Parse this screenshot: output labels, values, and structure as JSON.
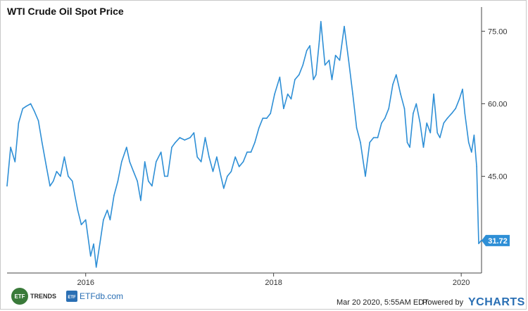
{
  "chart_data": {
    "type": "line",
    "title": "WTI Crude Oil Spot Price",
    "series": [
      {
        "color": "#2e8fd6",
        "points": [
          [
            "2015-03-01",
            43
          ],
          [
            "2015-03-15",
            51
          ],
          [
            "2015-04-01",
            48
          ],
          [
            "2015-04-15",
            56
          ],
          [
            "2015-05-01",
            59
          ],
          [
            "2015-05-15",
            59.5
          ],
          [
            "2015-06-01",
            60
          ],
          [
            "2015-06-15",
            58.5
          ],
          [
            "2015-07-01",
            56.5
          ],
          [
            "2015-07-15",
            52
          ],
          [
            "2015-08-01",
            47
          ],
          [
            "2015-08-15",
            43
          ],
          [
            "2015-08-28",
            44
          ],
          [
            "2015-09-10",
            46
          ],
          [
            "2015-09-25",
            45
          ],
          [
            "2015-10-10",
            49
          ],
          [
            "2015-10-25",
            45
          ],
          [
            "2015-11-10",
            44
          ],
          [
            "2015-11-20",
            41
          ],
          [
            "2015-12-01",
            38
          ],
          [
            "2015-12-15",
            35
          ],
          [
            "2016-01-01",
            36
          ],
          [
            "2016-01-20",
            28.5
          ],
          [
            "2016-02-01",
            31
          ],
          [
            "2016-02-11",
            26.2
          ],
          [
            "2016-02-25",
            31
          ],
          [
            "2016-03-10",
            36
          ],
          [
            "2016-03-25",
            38
          ],
          [
            "2016-04-05",
            36
          ],
          [
            "2016-04-20",
            41
          ],
          [
            "2016-05-05",
            44
          ],
          [
            "2016-05-20",
            48
          ],
          [
            "2016-06-08",
            51
          ],
          [
            "2016-06-20",
            48
          ],
          [
            "2016-07-05",
            46
          ],
          [
            "2016-07-20",
            44
          ],
          [
            "2016-08-02",
            40
          ],
          [
            "2016-08-18",
            48
          ],
          [
            "2016-09-01",
            44
          ],
          [
            "2016-09-15",
            43
          ],
          [
            "2016-10-01",
            48
          ],
          [
            "2016-10-20",
            50
          ],
          [
            "2016-11-03",
            45
          ],
          [
            "2016-11-15",
            45
          ],
          [
            "2016-12-01",
            51
          ],
          [
            "2016-12-15",
            52
          ],
          [
            "2017-01-01",
            53
          ],
          [
            "2017-01-20",
            52.5
          ],
          [
            "2017-02-10",
            53
          ],
          [
            "2017-02-25",
            54
          ],
          [
            "2017-03-10",
            49
          ],
          [
            "2017-03-25",
            48
          ],
          [
            "2017-04-10",
            53
          ],
          [
            "2017-04-25",
            49
          ],
          [
            "2017-05-10",
            46
          ],
          [
            "2017-05-25",
            49
          ],
          [
            "2017-06-10",
            45
          ],
          [
            "2017-06-21",
            42.5
          ],
          [
            "2017-07-05",
            45
          ],
          [
            "2017-07-20",
            46
          ],
          [
            "2017-08-05",
            49
          ],
          [
            "2017-08-20",
            47
          ],
          [
            "2017-09-05",
            48
          ],
          [
            "2017-09-20",
            50
          ],
          [
            "2017-10-05",
            50
          ],
          [
            "2017-10-20",
            52
          ],
          [
            "2017-11-05",
            55
          ],
          [
            "2017-11-20",
            57
          ],
          [
            "2017-12-05",
            57
          ],
          [
            "2017-12-20",
            58
          ],
          [
            "2018-01-05",
            62
          ],
          [
            "2018-01-25",
            65.5
          ],
          [
            "2018-02-09",
            59
          ],
          [
            "2018-02-25",
            62
          ],
          [
            "2018-03-10",
            61
          ],
          [
            "2018-03-25",
            65
          ],
          [
            "2018-04-10",
            66
          ],
          [
            "2018-04-25",
            68
          ],
          [
            "2018-05-10",
            71
          ],
          [
            "2018-05-22",
            72
          ],
          [
            "2018-06-05",
            65
          ],
          [
            "2018-06-15",
            66
          ],
          [
            "2018-06-28",
            73
          ],
          [
            "2018-07-04",
            77
          ],
          [
            "2018-07-20",
            68
          ],
          [
            "2018-08-05",
            69
          ],
          [
            "2018-08-16",
            65
          ],
          [
            "2018-08-30",
            70
          ],
          [
            "2018-09-15",
            69
          ],
          [
            "2018-10-03",
            76
          ],
          [
            "2018-10-20",
            69
          ],
          [
            "2018-11-05",
            62
          ],
          [
            "2018-11-20",
            55
          ],
          [
            "2018-12-05",
            52
          ],
          [
            "2018-12-24",
            45
          ],
          [
            "2019-01-10",
            52
          ],
          [
            "2019-01-25",
            53
          ],
          [
            "2019-02-10",
            53
          ],
          [
            "2019-02-25",
            56
          ],
          [
            "2019-03-10",
            57
          ],
          [
            "2019-03-25",
            59
          ],
          [
            "2019-04-10",
            64
          ],
          [
            "2019-04-23",
            66
          ],
          [
            "2019-05-10",
            62
          ],
          [
            "2019-05-25",
            59
          ],
          [
            "2019-06-05",
            52
          ],
          [
            "2019-06-15",
            51
          ],
          [
            "2019-06-28",
            58
          ],
          [
            "2019-07-10",
            60
          ],
          [
            "2019-07-25",
            56
          ],
          [
            "2019-08-07",
            51
          ],
          [
            "2019-08-20",
            56
          ],
          [
            "2019-09-03",
            54
          ],
          [
            "2019-09-16",
            62
          ],
          [
            "2019-09-30",
            54
          ],
          [
            "2019-10-10",
            53
          ],
          [
            "2019-10-25",
            56
          ],
          [
            "2019-11-08",
            57
          ],
          [
            "2019-11-25",
            58
          ],
          [
            "2019-12-10",
            59
          ],
          [
            "2019-12-25",
            61
          ],
          [
            "2020-01-06",
            63
          ],
          [
            "2020-01-15",
            58
          ],
          [
            "2020-01-30",
            52
          ],
          [
            "2020-02-10",
            50
          ],
          [
            "2020-02-20",
            53.5
          ],
          [
            "2020-03-01",
            47
          ],
          [
            "2020-03-09",
            31.1
          ],
          [
            "2020-03-19",
            31.72
          ]
        ]
      }
    ],
    "x_range": [
      "2015-03-01",
      "2020-03-20"
    ],
    "x_ticks": [
      {
        "date": "2016-01-01",
        "label": "2016"
      },
      {
        "date": "2018-01-01",
        "label": "2018"
      },
      {
        "date": "2020-01-01",
        "label": "2020"
      }
    ],
    "ylim": [
      25,
      80
    ],
    "y_ticks": [
      {
        "value": 45,
        "label": "45.00"
      },
      {
        "value": 60,
        "label": "60.00"
      },
      {
        "value": 75,
        "label": "75.00"
      }
    ],
    "last_value": 31.72,
    "last_value_label": "31.72",
    "grid": false
  },
  "footer": {
    "timestamp": "Mar 20 2020, 5:55AM EDT.",
    "powered_by": "Powered by",
    "brand": "YCHARTS",
    "logo1_text": "ETF",
    "logo1_word": "TRENDS",
    "logo2_text": "ETF",
    "logo2_word": "ETFdb.com"
  }
}
